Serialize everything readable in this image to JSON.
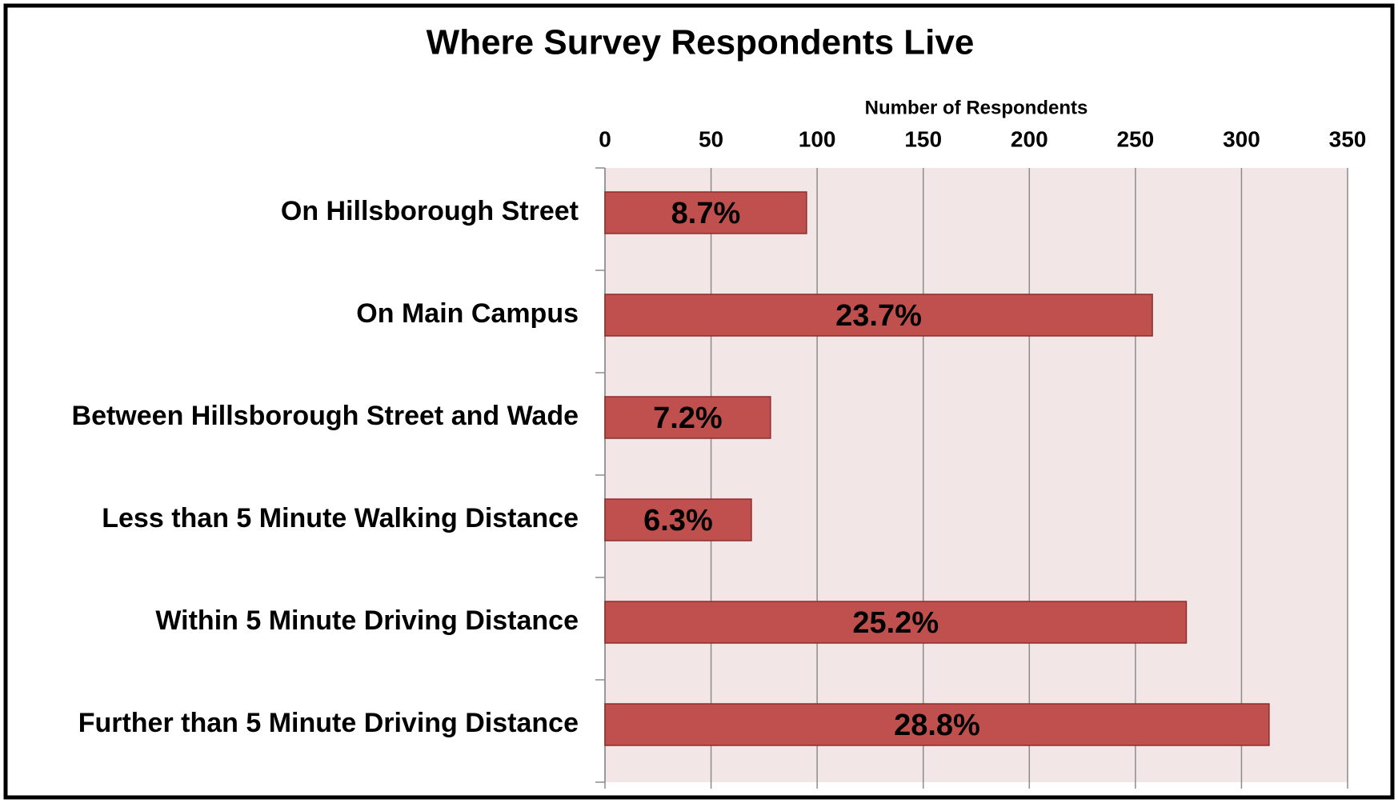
{
  "chart_data": {
    "type": "barh",
    "title": "Where Survey Respondents Live",
    "xlabel": "Number of Respondents",
    "categories": [
      "On Hillsborough Street",
      "On Main Campus",
      "Between Hillsborough Street and Wade",
      "Less than 5 Minute Walking Distance",
      "Within 5 Minute Driving Distance",
      "Further than 5 Minute Driving Distance"
    ],
    "values": [
      95,
      258,
      78,
      69,
      274,
      313
    ],
    "data_labels": [
      "8.7%",
      "23.7%",
      "7.2%",
      "6.3%",
      "25.2%",
      "28.8%"
    ],
    "color": "#c0504d",
    "xlim": [
      0,
      350
    ],
    "xticks": [
      0,
      50,
      100,
      150,
      200,
      250,
      300,
      350
    ],
    "grid": true
  }
}
